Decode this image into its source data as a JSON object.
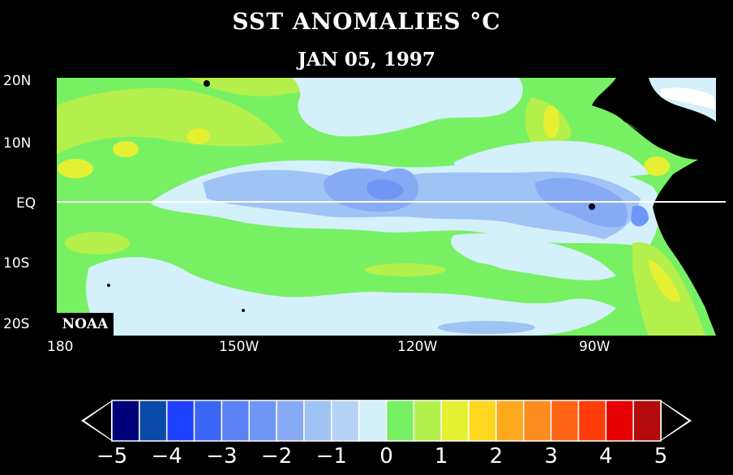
{
  "title": "SST ANOMALIES °C",
  "date": "JAN 05, 1997",
  "watermark": "NOAA",
  "lat_labels": [
    "20N",
    "10N",
    "EQ",
    "10S",
    "20S"
  ],
  "lon_labels": [
    "180",
    "150W",
    "120W",
    "90W"
  ],
  "legend": {
    "tick_labels": [
      "−5",
      "−4",
      "−3",
      "−2",
      "−1",
      "0",
      "1",
      "2",
      "3",
      "4",
      "5"
    ],
    "colors": [
      "#00007a",
      "#0a4aa8",
      "#1e40ff",
      "#3c64f5",
      "#5a82f5",
      "#6e96f5",
      "#87aaf5",
      "#a0c3f5",
      "#b4d2f5",
      "#d4f0fa",
      "#78f064",
      "#b4f04b",
      "#e6f032",
      "#ffd71e",
      "#ffaa1e",
      "#ff8c1e",
      "#ff6414",
      "#ff3c0a",
      "#e60000",
      "#b40a0a"
    ]
  },
  "colors": {
    "land": "#000000",
    "neutral": "#d4f0fa",
    "light_blue": "#a0c3f5",
    "mid_blue": "#87aaf5",
    "blue": "#6e96f5",
    "green": "#78f064",
    "yellow_green": "#b4f04b",
    "yellow": "#e6f032",
    "gold": "#ffd71e",
    "white": "#ffffff"
  }
}
